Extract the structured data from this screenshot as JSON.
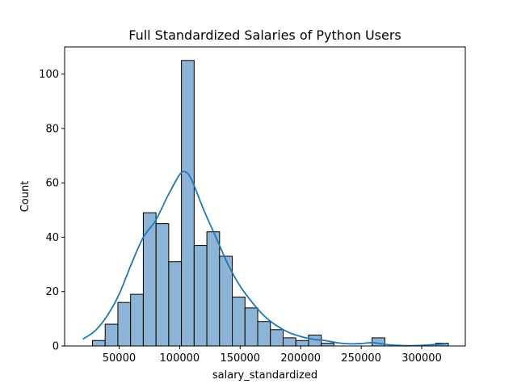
{
  "chart_data": {
    "type": "histogram",
    "title": "Full Standardized Salaries of Python Users",
    "xlabel": "salary_standardized",
    "ylabel": "Count",
    "xlim": [
      5000,
      336000
    ],
    "ylim": [
      0,
      110
    ],
    "x_ticks": [
      {
        "value": 50000,
        "label": "50000"
      },
      {
        "value": 100000,
        "label": "100000"
      },
      {
        "value": 150000,
        "label": "150000"
      },
      {
        "value": 200000,
        "label": "200000"
      },
      {
        "value": 250000,
        "label": "250000"
      },
      {
        "value": 300000,
        "label": "300000"
      }
    ],
    "y_ticks": [
      {
        "value": 0,
        "label": "0"
      },
      {
        "value": 20,
        "label": "20"
      },
      {
        "value": 40,
        "label": "40"
      },
      {
        "value": 60,
        "label": "60"
      },
      {
        "value": 80,
        "label": "80"
      },
      {
        "value": 100,
        "label": "100"
      }
    ],
    "bins": {
      "start": 28000,
      "width": 10500,
      "counts": [
        2,
        8,
        16,
        19,
        49,
        45,
        31,
        105,
        37,
        42,
        33,
        18,
        14,
        9,
        6,
        3,
        2,
        4,
        1,
        0,
        0,
        0,
        3,
        0,
        0,
        0,
        0,
        1
      ]
    },
    "kde": {
      "x": [
        20000,
        30000,
        40000,
        50000,
        60000,
        70000,
        80000,
        90000,
        100000,
        105000,
        110000,
        120000,
        130000,
        140000,
        150000,
        160000,
        170000,
        180000,
        190000,
        200000,
        210000,
        220000,
        230000,
        240000,
        250000,
        260000,
        270000,
        280000,
        290000,
        300000,
        310000,
        320000
      ],
      "y": [
        2.5,
        5.5,
        11,
        19,
        30,
        40,
        46,
        55,
        63,
        64,
        61,
        50,
        40,
        30,
        22,
        16,
        11,
        7.5,
        5,
        3.5,
        2.5,
        2,
        1.2,
        0.8,
        0.9,
        1.2,
        0.6,
        0.2,
        0.1,
        0.2,
        0.5,
        0.8
      ]
    },
    "colors": {
      "bar_fill": "#8db4d6",
      "bar_edge": "#000000",
      "kde_line": "#1f77b4"
    },
    "grid": false,
    "legend": "none"
  }
}
